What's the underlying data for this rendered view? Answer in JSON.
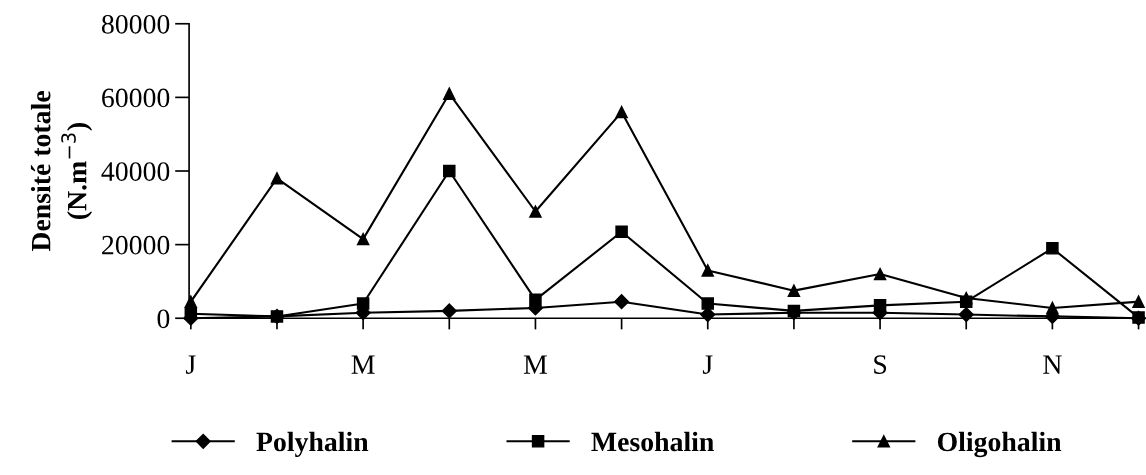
{
  "chart_data": {
    "type": "line",
    "ylabel": "Densité totale\n(N.m$^{−3}$)",
    "categories": [
      "J",
      null,
      "M",
      null,
      "M",
      null,
      "J",
      null,
      "S",
      null,
      "N",
      null
    ],
    "series": [
      {
        "name": "Polyhalin",
        "color": "#000000",
        "marker": "diamond",
        "values": [
          0,
          500,
          1500,
          2000,
          2800,
          4500,
          1000,
          1500,
          1500,
          1000,
          500,
          0
        ]
      },
      {
        "name": "Mesohalin",
        "color": "#000000",
        "marker": "square",
        "values": [
          1200,
          500,
          4000,
          40000,
          5000,
          23500,
          4000,
          2000,
          3500,
          4500,
          19000,
          200
        ]
      },
      {
        "name": "Oligohalin",
        "color": "#000000",
        "marker": "triangle",
        "values": [
          4500,
          38000,
          21500,
          61000,
          29000,
          56000,
          13000,
          7500,
          12000,
          5500,
          2800,
          4500
        ]
      }
    ],
    "ylim": [
      0,
      80000
    ],
    "yticks": [
      0,
      20000,
      40000,
      60000,
      80000
    ],
    "grid": false,
    "legend": "bottom",
    "line_style": "solid"
  }
}
